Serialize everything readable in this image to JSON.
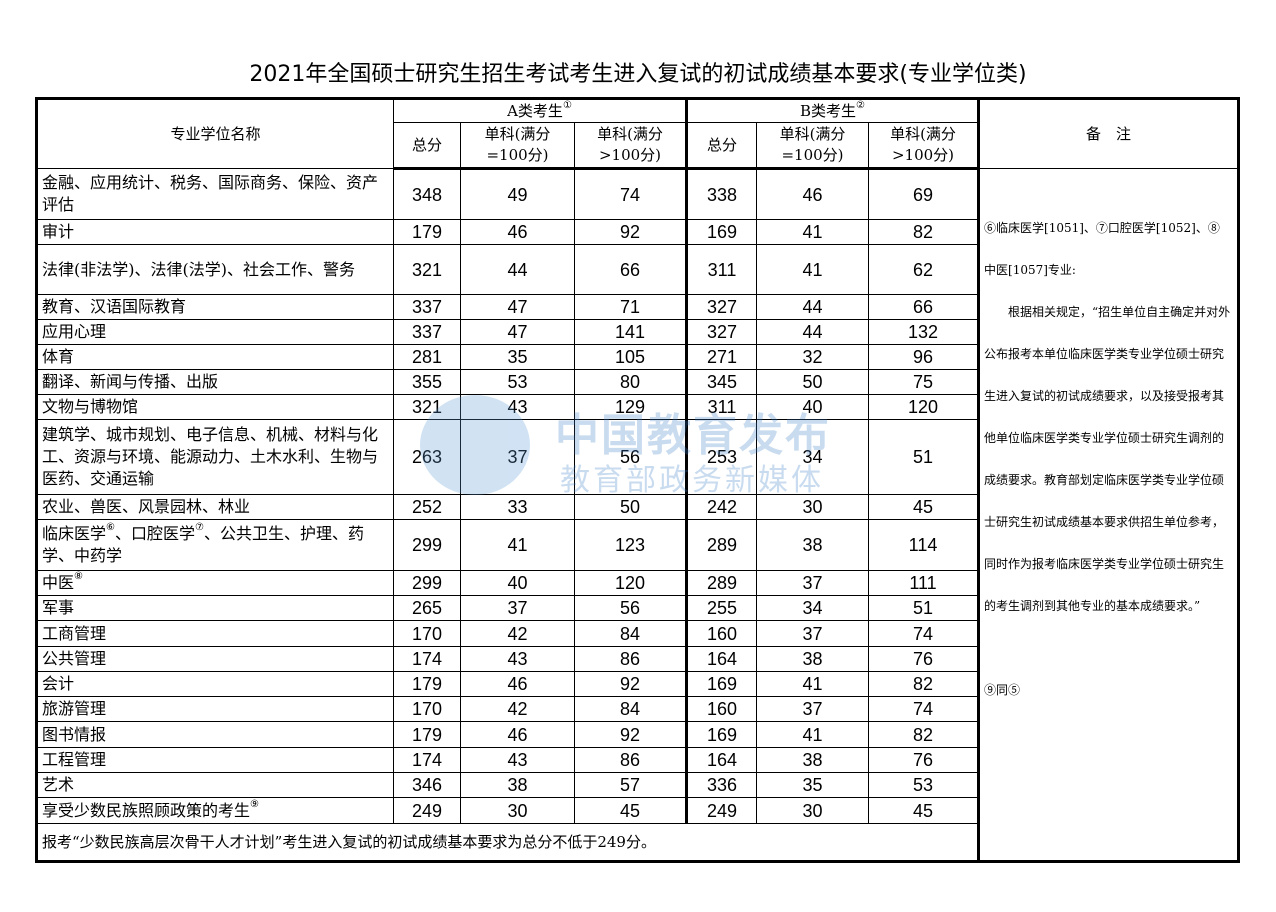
{
  "title": "2021年全国硕士研究生招生考试考生进入复试的初试成绩基本要求(专业学位类)",
  "header": {
    "name_col": "专业学位名称",
    "group_a": "A类考生",
    "group_a_note": "①",
    "group_b": "B类考生",
    "group_b_note": "②",
    "total": "总分",
    "single_100": "单科(满分=100分)",
    "single_gt100": "单科(满分>100分)",
    "remarks": "备　注"
  },
  "rows": [
    {
      "name": [
        {
          "t": "金融、应用统计、税务、国际商务、保险、资产评估"
        }
      ],
      "v": [
        "348",
        "49",
        "74",
        "338",
        "46",
        "69"
      ],
      "h": 51
    },
    {
      "name": [
        {
          "t": "审计"
        }
      ],
      "v": [
        "179",
        "46",
        "92",
        "169",
        "41",
        "82"
      ],
      "h": 25
    },
    {
      "name": [
        {
          "t": "法律(非法学)、法律(法学)、社会工作、警务"
        }
      ],
      "v": [
        "321",
        "44",
        "66",
        "311",
        "41",
        "62"
      ],
      "h": 50
    },
    {
      "name": [
        {
          "t": "教育、汉语国际教育"
        }
      ],
      "v": [
        "337",
        "47",
        "71",
        "327",
        "44",
        "66"
      ],
      "h": 25
    },
    {
      "name": [
        {
          "t": "应用心理"
        }
      ],
      "v": [
        "337",
        "47",
        "141",
        "327",
        "44",
        "132"
      ],
      "h": 25
    },
    {
      "name": [
        {
          "t": "体育"
        }
      ],
      "v": [
        "281",
        "35",
        "105",
        "271",
        "32",
        "96"
      ],
      "h": 25
    },
    {
      "name": [
        {
          "t": "翻译、新闻与传播、出版"
        }
      ],
      "v": [
        "355",
        "53",
        "80",
        "345",
        "50",
        "75"
      ],
      "h": 25
    },
    {
      "name": [
        {
          "t": "文物与博物馆"
        }
      ],
      "v": [
        "321",
        "43",
        "129",
        "311",
        "40",
        "120"
      ],
      "h": 25
    },
    {
      "name": [
        {
          "t": "建筑学、城市规划、电子信息、机械、材料与化工、资源与环境、能源动力、土木水利、生物与医药、交通运输"
        }
      ],
      "v": [
        "263",
        "37",
        "56",
        "253",
        "34",
        "51"
      ],
      "h": 75
    },
    {
      "name": [
        {
          "t": "农业、兽医、风景园林、林业"
        }
      ],
      "v": [
        "252",
        "33",
        "50",
        "242",
        "30",
        "45"
      ],
      "h": 25
    },
    {
      "name": [
        {
          "t": "临床医学",
          "sup": "⑥"
        },
        {
          "t": "、口腔医学",
          "sup": "⑦"
        },
        {
          "t": "、公共卫生、护理、药学、中药学"
        }
      ],
      "v": [
        "299",
        "41",
        "123",
        "289",
        "38",
        "114"
      ],
      "h": 51
    },
    {
      "name": [
        {
          "t": "中医",
          "sup": "⑧"
        }
      ],
      "v": [
        "299",
        "40",
        "120",
        "289",
        "37",
        "111"
      ],
      "h": 25
    },
    {
      "name": [
        {
          "t": "军事"
        }
      ],
      "v": [
        "265",
        "37",
        "56",
        "255",
        "34",
        "51"
      ],
      "h": 25
    },
    {
      "name": [
        {
          "t": "工商管理"
        }
      ],
      "v": [
        "170",
        "42",
        "84",
        "160",
        "37",
        "74"
      ],
      "h": 26
    },
    {
      "name": [
        {
          "t": "公共管理"
        }
      ],
      "v": [
        "174",
        "43",
        "86",
        "164",
        "38",
        "76"
      ],
      "h": 25
    },
    {
      "name": [
        {
          "t": "会计"
        }
      ],
      "v": [
        "179",
        "46",
        "92",
        "169",
        "41",
        "82"
      ],
      "h": 25
    },
    {
      "name": [
        {
          "t": "旅游管理"
        }
      ],
      "v": [
        "170",
        "42",
        "84",
        "160",
        "37",
        "74"
      ],
      "h": 25
    },
    {
      "name": [
        {
          "t": "图书情报"
        }
      ],
      "v": [
        "179",
        "46",
        "92",
        "169",
        "41",
        "82"
      ],
      "h": 26
    },
    {
      "name": [
        {
          "t": "工程管理"
        }
      ],
      "v": [
        "174",
        "43",
        "86",
        "164",
        "38",
        "76"
      ],
      "h": 25
    },
    {
      "name": [
        {
          "t": "艺术"
        }
      ],
      "v": [
        "346",
        "38",
        "57",
        "336",
        "35",
        "53"
      ],
      "h": 25
    },
    {
      "name": [
        {
          "t": "享受少数民族照顾政策的考生",
          "sup": "⑨"
        }
      ],
      "v": [
        "249",
        "30",
        "45",
        "249",
        "30",
        "45"
      ],
      "h": 26
    }
  ],
  "remarks": {
    "line1": "⑥临床医学[1051]、⑦口腔医学[1052]、⑧中医[1057]专业:",
    "line2": "根据相关规定，“招生单位自主确定并对外公布报考本单位临床医学类专业学位硕士研究生进入复试的初试成绩要求，以及接受报考其他单位临床医学类专业学位硕士研究生调剂的成绩要求。教育部划定临床医学类专业学位硕士研究生初试成绩基本要求供招生单位参考，同时作为报考临床医学类专业学位硕士研究生的考生调剂到其他专业的基本成绩要求。”",
    "line3": "⑨同⑤"
  },
  "footer": "报考“少数民族高层次骨干人才计划”考生进入复试的初试成绩基本要求为总分不低于249分。",
  "watermark": {
    "line1": "中国教育发布",
    "line2": "教育部政务新媒体",
    "color": "#3d7fc8"
  }
}
